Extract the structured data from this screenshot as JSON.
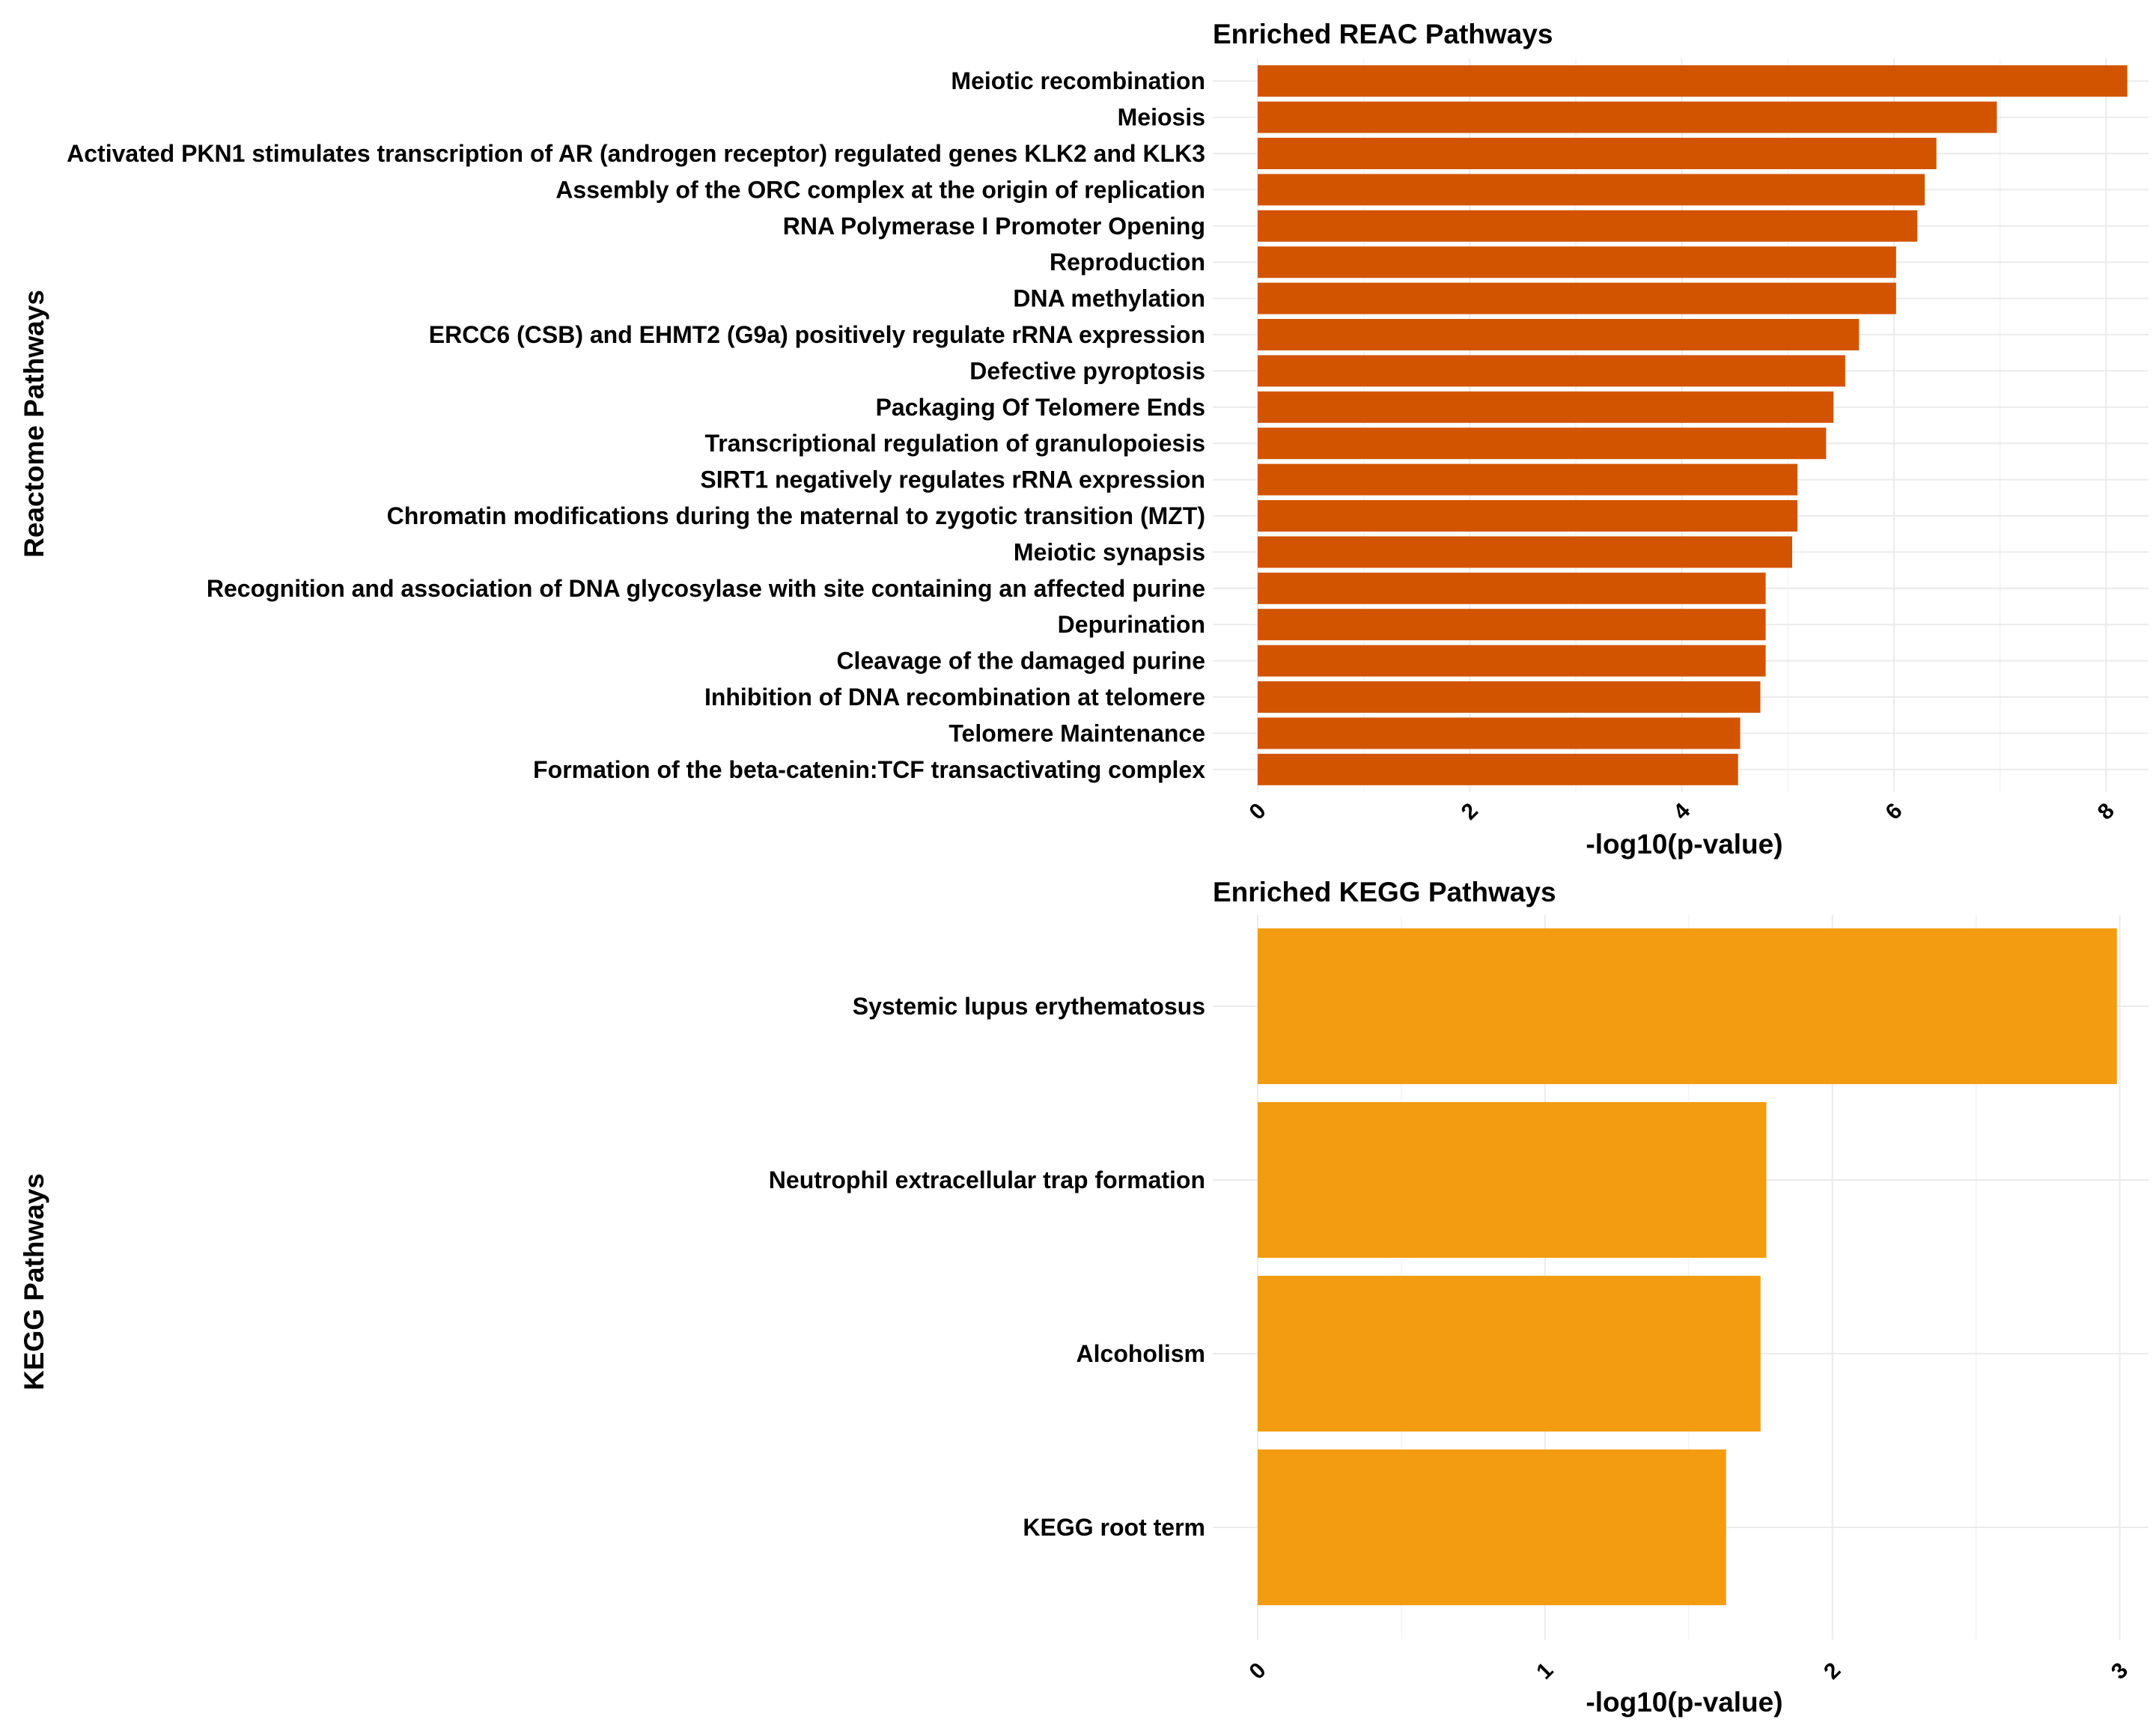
{
  "chart_data": [
    {
      "type": "bar",
      "orientation": "horizontal",
      "title": "Enriched REAC Pathways",
      "xlabel": "-log10(p-value)",
      "ylabel": "Reactome Pathways",
      "xlim": [
        0,
        8.4
      ],
      "xticks": [
        0,
        2,
        4,
        6,
        8
      ],
      "xtick_labels": [
        "0",
        "2",
        "4",
        "6",
        "8"
      ],
      "grid": true,
      "bar_color": "#D35400",
      "categories": [
        "Meiotic recombination",
        "Meiosis",
        "Activated PKN1 stimulates transcription of AR (androgen receptor) regulated genes KLK2 and KLK3",
        "Assembly of the ORC complex at the origin of replication",
        "RNA Polymerase I Promoter Opening",
        "Reproduction",
        "DNA methylation",
        "ERCC6 (CSB) and EHMT2 (G9a) positively regulate rRNA expression",
        "Defective pyroptosis",
        "Packaging Of Telomere Ends",
        "Transcriptional regulation of granulopoiesis",
        "SIRT1 negatively regulates rRNA expression",
        "Chromatin modifications during the maternal to zygotic transition (MZT)",
        "Meiotic synapsis",
        "Recognition and association of DNA glycosylase with site containing an affected purine",
        "Depurination",
        "Cleavage of the damaged purine",
        "Inhibition of DNA recombination at telomere",
        "Telomere Maintenance",
        "Formation of the beta-catenin:TCF transactivating complex"
      ],
      "values": [
        8.2,
        6.97,
        6.4,
        6.29,
        6.22,
        6.02,
        6.02,
        5.67,
        5.54,
        5.43,
        5.36,
        5.09,
        5.09,
        5.04,
        4.79,
        4.79,
        4.79,
        4.74,
        4.55,
        4.53
      ]
    },
    {
      "type": "bar",
      "orientation": "horizontal",
      "title": "Enriched KEGG Pathways",
      "xlabel": "-log10(p-value)",
      "ylabel": "KEGG Pathways",
      "xlim": [
        0,
        3.1
      ],
      "xticks": [
        0,
        1,
        2,
        3
      ],
      "xtick_labels": [
        "0",
        "1",
        "2",
        "3"
      ],
      "grid": true,
      "bar_color": "#F39C12",
      "categories": [
        "Systemic lupus erythematosus",
        "Neutrophil extracellular trap formation",
        "Alcoholism",
        "KEGG root term"
      ],
      "values": [
        2.99,
        1.77,
        1.75,
        1.63
      ]
    }
  ]
}
